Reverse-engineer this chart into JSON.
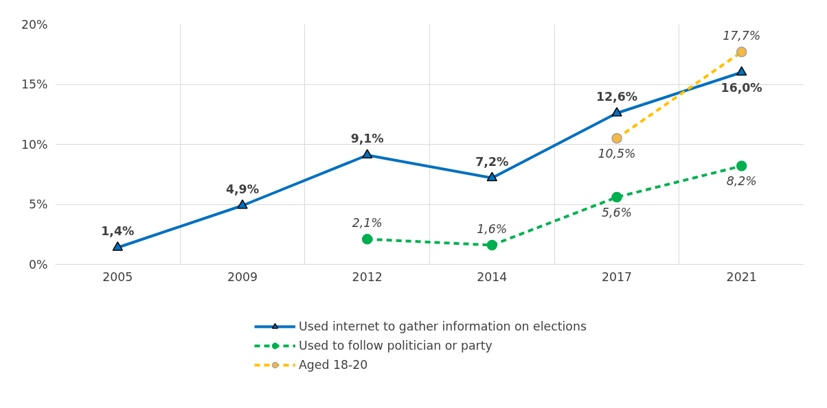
{
  "chart_data": {
    "type": "line",
    "categories": [
      "2005",
      "2009",
      "2012",
      "2014",
      "2017",
      "2021"
    ],
    "series": [
      {
        "name": "Used internet to gather information on elections",
        "color": "#0070c0",
        "marker": "triangle",
        "line_style": "solid",
        "values": [
          1.4,
          4.9,
          9.1,
          7.2,
          12.6,
          16.0
        ],
        "value_labels": [
          "1,4%",
          "4,9%",
          "9,1%",
          "7,2%",
          "12,6%",
          "16,0%"
        ]
      },
      {
        "name": "Used to follow politician or party",
        "color": "#00b050",
        "marker": "circle",
        "line_style": "dashed",
        "values": [
          null,
          null,
          2.1,
          1.6,
          5.6,
          8.2
        ],
        "value_labels": [
          null,
          null,
          "2,1%",
          "1,6%",
          "5,6%",
          "8,2%"
        ]
      },
      {
        "name": "Aged 18-20",
        "color": "#ffc000",
        "marker": "circle",
        "line_style": "dashed",
        "values": [
          null,
          null,
          null,
          null,
          10.5,
          17.7
        ],
        "value_labels": [
          null,
          null,
          null,
          null,
          "10,5%",
          "17,7%"
        ]
      }
    ],
    "ylim": [
      0,
      20
    ],
    "yticks": [
      {
        "value": 0,
        "label": "0%"
      },
      {
        "value": 5,
        "label": "5%"
      },
      {
        "value": 10,
        "label": "10%"
      },
      {
        "value": 15,
        "label": "15%"
      },
      {
        "value": 20,
        "label": "20%"
      }
    ],
    "grid": true,
    "legend": "bottom"
  }
}
